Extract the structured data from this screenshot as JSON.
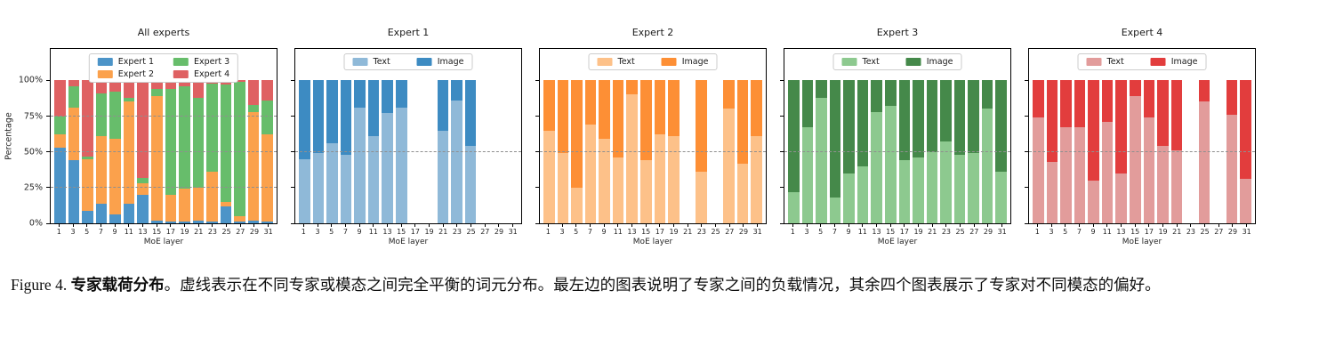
{
  "caption": {
    "prefix": "Figure 4. ",
    "bold": "专家载荷分布",
    "rest": "。虚线表示在不同专家或模态之间完全平衡的词元分布。最左边的图表说明了专家之间的负载情况，其余四个图表展示了专家对不同模态的偏好。"
  },
  "axis": {
    "xlabel": "MoE layer",
    "ylabel": "Percentage",
    "yticks": [
      0,
      25,
      50,
      75,
      100
    ],
    "ytick_labels": [
      "0%",
      "25%",
      "50%",
      "75%",
      "100%"
    ],
    "ymax": 122,
    "categories": [
      1,
      3,
      5,
      7,
      9,
      11,
      13,
      15,
      17,
      19,
      21,
      23,
      25,
      27,
      29,
      31
    ]
  },
  "chart_data": [
    {
      "type": "bar",
      "stacked": true,
      "title": "All experts",
      "dashed_lines": [
        25,
        50,
        75
      ],
      "show_ylabels": true,
      "legend_layout": "grid4",
      "series": [
        {
          "name": "Expert 1",
          "color": "#4c94c8",
          "values": [
            53,
            44,
            9,
            14,
            6,
            14,
            20,
            2,
            1,
            1,
            2,
            1,
            12,
            1,
            2,
            1
          ]
        },
        {
          "name": "Expert 2",
          "color": "#fba14c",
          "values": [
            9,
            37,
            36,
            47,
            53,
            71,
            8,
            87,
            19,
            23,
            23,
            35,
            3,
            4,
            76,
            61
          ]
        },
        {
          "name": "Expert 3",
          "color": "#67bd6b",
          "values": [
            13,
            15,
            2,
            30,
            33,
            3,
            4,
            5,
            74,
            72,
            63,
            62,
            82,
            94,
            5,
            24
          ]
        },
        {
          "name": "Expert 4",
          "color": "#df6162",
          "values": [
            25,
            4,
            53,
            9,
            8,
            12,
            68,
            6,
            6,
            4,
            12,
            2,
            3,
            1,
            17,
            14
          ]
        }
      ]
    },
    {
      "type": "bar",
      "stacked": true,
      "title": "Expert 1",
      "dashed_lines": [
        50
      ],
      "show_ylabels": false,
      "legend_layout": "row2",
      "series": [
        {
          "name": "Text",
          "color": "#8fb9d8",
          "values": [
            45,
            49,
            56,
            48,
            81,
            61,
            77,
            81,
            null,
            null,
            65,
            86,
            54,
            null,
            null,
            null
          ]
        },
        {
          "name": "Image",
          "color": "#3d8bc2",
          "values": [
            55,
            51,
            44,
            52,
            19,
            39,
            23,
            19,
            null,
            null,
            35,
            14,
            46,
            null,
            null,
            null
          ]
        }
      ]
    },
    {
      "type": "bar",
      "stacked": true,
      "title": "Expert 2",
      "dashed_lines": [
        50
      ],
      "show_ylabels": false,
      "legend_layout": "row2",
      "series": [
        {
          "name": "Text",
          "color": "#fdc189",
          "values": [
            65,
            49,
            25,
            69,
            59,
            46,
            90,
            44,
            62,
            61,
            null,
            36,
            null,
            80,
            42,
            61
          ]
        },
        {
          "name": "Image",
          "color": "#fd8f35",
          "values": [
            35,
            51,
            75,
            31,
            41,
            54,
            10,
            56,
            38,
            39,
            null,
            64,
            null,
            20,
            58,
            39
          ]
        }
      ]
    },
    {
      "type": "bar",
      "stacked": true,
      "title": "Expert 3",
      "dashed_lines": [
        50
      ],
      "show_ylabels": false,
      "legend_layout": "row2",
      "series": [
        {
          "name": "Text",
          "color": "#8dc98f",
          "values": [
            22,
            67,
            88,
            18,
            35,
            40,
            78,
            82,
            44,
            46,
            50,
            57,
            48,
            49,
            80,
            36
          ]
        },
        {
          "name": "Image",
          "color": "#45894a",
          "values": [
            78,
            33,
            12,
            82,
            65,
            60,
            22,
            18,
            56,
            54,
            50,
            43,
            52,
            51,
            20,
            64
          ]
        }
      ]
    },
    {
      "type": "bar",
      "stacked": true,
      "title": "Expert 4",
      "dashed_lines": [
        50
      ],
      "show_ylabels": false,
      "legend_layout": "row2",
      "series": [
        {
          "name": "Text",
          "color": "#e29c9b",
          "values": [
            74,
            43,
            67,
            67,
            30,
            71,
            35,
            89,
            74,
            54,
            51,
            null,
            85,
            null,
            76,
            31
          ]
        },
        {
          "name": "Image",
          "color": "#e23d3d",
          "values": [
            26,
            57,
            33,
            33,
            70,
            29,
            65,
            11,
            26,
            46,
            49,
            null,
            15,
            null,
            24,
            69
          ]
        }
      ]
    }
  ]
}
